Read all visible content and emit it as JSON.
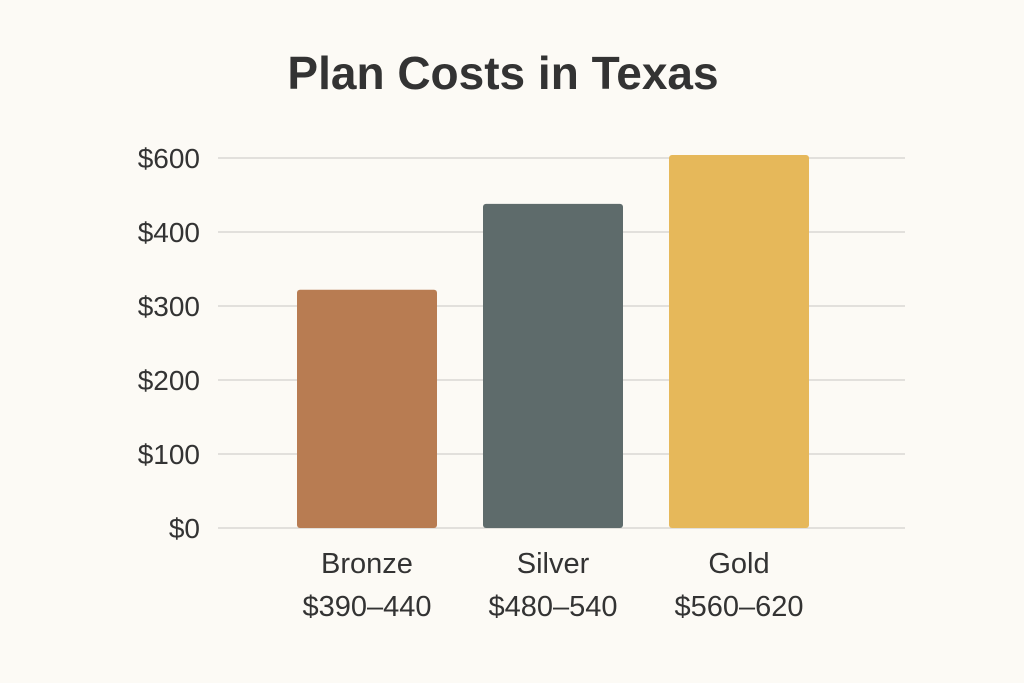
{
  "chart_data": {
    "type": "bar",
    "title": "Plan Costs in Texas",
    "xlabel": "",
    "ylabel": "",
    "y_tick_labels": [
      "$0",
      "$100",
      "$200",
      "$300",
      "$400",
      "$600"
    ],
    "y_tick_values": [
      0,
      100,
      200,
      300,
      400,
      600
    ],
    "ylim": [
      0,
      600
    ],
    "grid": true,
    "categories": [
      "Bronze",
      "Silver",
      "Gold"
    ],
    "category_sublabels": [
      "$390–440",
      "$480–540",
      "$560–620"
    ],
    "values": [
      322,
      476,
      608
    ],
    "colors": [
      "#b87c52",
      "#5e6b6b",
      "#e6b85a"
    ],
    "grid_color": "#e2e0dc"
  }
}
